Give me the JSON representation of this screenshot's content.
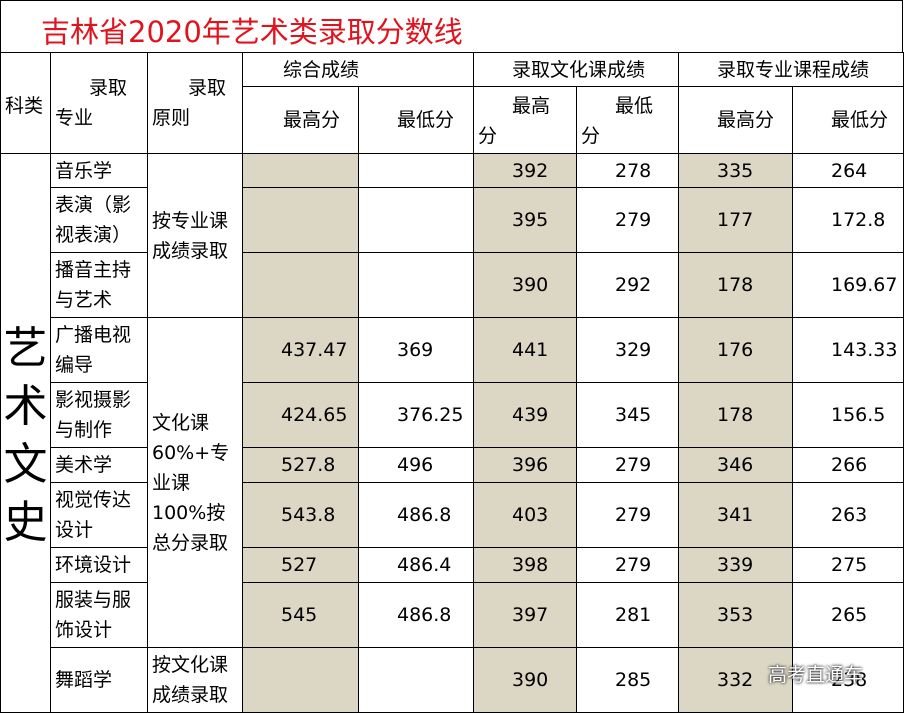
{
  "title": "吉林省2020年艺术类录取分数线",
  "headers": {
    "kelei": "科类",
    "major_a": "录取",
    "major_b": "专业",
    "principle_a": "录取",
    "principle_b": "原则",
    "group_comprehensive": "综合成绩",
    "group_culture": "录取文化课成绩",
    "group_professional": "录取专业课程成绩",
    "max": "最高分",
    "min": "最低分",
    "culture_max_a": "最高",
    "culture_max_b": "分",
    "culture_min_a": "最低",
    "culture_min_b": "分"
  },
  "category": [
    "艺",
    "术",
    "文",
    "史"
  ],
  "principles": {
    "p1": [
      "按专业课",
      "成绩录取"
    ],
    "p2": [
      "文化课",
      "60%+专",
      "业课",
      "100%按",
      "总分录取"
    ],
    "p3": [
      "按文化课",
      "成绩录取"
    ]
  },
  "rows": [
    {
      "major": [
        "音乐学"
      ],
      "comp_max": "",
      "comp_min": "",
      "cul_max": "392",
      "cul_min": "278",
      "pro_max": "335",
      "pro_min": "264"
    },
    {
      "major": [
        "表演（影",
        "视表演）"
      ],
      "comp_max": "",
      "comp_min": "",
      "cul_max": "395",
      "cul_min": "279",
      "pro_max": "177",
      "pro_min": "172.8"
    },
    {
      "major": [
        "播音主持",
        "与艺术"
      ],
      "comp_max": "",
      "comp_min": "",
      "cul_max": "390",
      "cul_min": "292",
      "pro_max": "178",
      "pro_min": "169.67"
    },
    {
      "major": [
        "广播电视",
        "编导"
      ],
      "comp_max": "437.47",
      "comp_min": "369",
      "cul_max": "441",
      "cul_min": "329",
      "pro_max": "176",
      "pro_min": "143.33"
    },
    {
      "major": [
        "影视摄影",
        "与制作"
      ],
      "comp_max": "424.65",
      "comp_min": "376.25",
      "cul_max": "439",
      "cul_min": "345",
      "pro_max": "178",
      "pro_min": "156.5"
    },
    {
      "major": [
        "美术学"
      ],
      "comp_max": "527.8",
      "comp_min": "496",
      "cul_max": "396",
      "cul_min": "279",
      "pro_max": "346",
      "pro_min": "266"
    },
    {
      "major": [
        "视觉传达",
        "设计"
      ],
      "comp_max": "543.8",
      "comp_min": "486.8",
      "cul_max": "403",
      "cul_min": "279",
      "pro_max": "341",
      "pro_min": "263"
    },
    {
      "major": [
        "环境设计"
      ],
      "comp_max": "527",
      "comp_min": "486.4",
      "cul_max": "398",
      "cul_min": "279",
      "pro_max": "339",
      "pro_min": "275"
    },
    {
      "major": [
        "服装与服",
        "饰设计"
      ],
      "comp_max": "545",
      "comp_min": "486.8",
      "cul_max": "397",
      "cul_min": "281",
      "pro_max": "353",
      "pro_min": "265"
    },
    {
      "major": [
        "舞蹈学"
      ],
      "comp_max": "",
      "comp_min": "",
      "cul_max": "390",
      "cul_min": "285",
      "pro_max": "332",
      "pro_min": "238"
    }
  ],
  "watermark": "高考直通车",
  "colors": {
    "title": "#e0141e",
    "shade": "#dcd6c4"
  }
}
